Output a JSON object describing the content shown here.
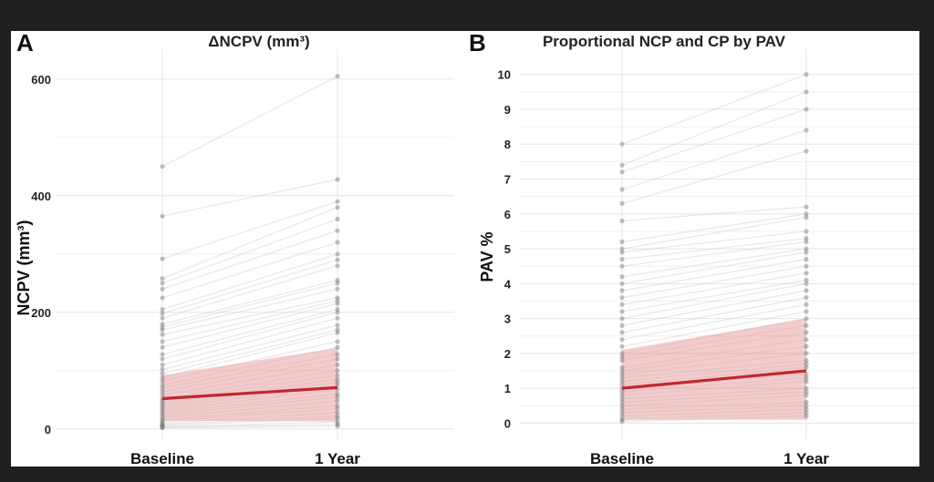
{
  "chart_data": [
    {
      "type": "line",
      "panel_letter": "A",
      "title": "ΔNCPV (mm³)",
      "xlabel": "",
      "ylabel": "NCPV (mm³)",
      "categories": [
        "Baseline",
        "1 Year"
      ],
      "y_ticks": [
        0,
        200,
        400,
        600
      ],
      "ylim": [
        -5,
        620
      ],
      "grid": true,
      "mean_line": {
        "values": [
          52,
          71
        ],
        "color": "#c1272d"
      },
      "confidence_band": {
        "lower": [
          14,
          13
        ],
        "upper": [
          92,
          139
        ],
        "color": "#e46a6a"
      },
      "subjects": [
        [
          450,
          605
        ],
        [
          365,
          428
        ],
        [
          292,
          390
        ],
        [
          258,
          380
        ],
        [
          250,
          360
        ],
        [
          240,
          340
        ],
        [
          225,
          320
        ],
        [
          205,
          300
        ],
        [
          198,
          290
        ],
        [
          190,
          280
        ],
        [
          180,
          255
        ],
        [
          175,
          250
        ],
        [
          170,
          240
        ],
        [
          162,
          225
        ],
        [
          150,
          220
        ],
        [
          140,
          215
        ],
        [
          128,
          205
        ],
        [
          120,
          200
        ],
        [
          110,
          190
        ],
        [
          102,
          178
        ],
        [
          95,
          170
        ],
        [
          88,
          165
        ],
        [
          82,
          150
        ],
        [
          75,
          140
        ],
        [
          70,
          128
        ],
        [
          64,
          120
        ],
        [
          58,
          110
        ],
        [
          52,
          100
        ],
        [
          48,
          92
        ],
        [
          44,
          85
        ],
        [
          40,
          80
        ],
        [
          36,
          75
        ],
        [
          32,
          68
        ],
        [
          28,
          60
        ],
        [
          24,
          55
        ],
        [
          20,
          48
        ],
        [
          16,
          40
        ],
        [
          13,
          35
        ],
        [
          10,
          28
        ],
        [
          8,
          22
        ],
        [
          6,
          18
        ],
        [
          4,
          12
        ],
        [
          3,
          8
        ],
        [
          2,
          5
        ]
      ]
    },
    {
      "type": "line",
      "panel_letter": "B",
      "title": "Proportional NCP and CP by PAV",
      "xlabel": "",
      "ylabel": "PAV %",
      "categories": [
        "Baseline",
        "1 Year"
      ],
      "y_ticks": [
        0,
        1,
        2,
        3,
        4,
        5,
        6,
        7,
        8,
        9,
        10
      ],
      "ylim": [
        -0.25,
        10.2
      ],
      "grid": true,
      "mean_line": {
        "values": [
          1.0,
          1.5
        ],
        "color": "#c1272d"
      },
      "confidence_band": {
        "lower": [
          0.1,
          0.1
        ],
        "upper": [
          2.1,
          3.0
        ],
        "color": "#e46a6a"
      },
      "subjects": [
        [
          8.0,
          10.0
        ],
        [
          7.4,
          9.5
        ],
        [
          7.2,
          9.0
        ],
        [
          6.7,
          8.4
        ],
        [
          6.3,
          7.8
        ],
        [
          5.8,
          6.2
        ],
        [
          5.2,
          6.0
        ],
        [
          5.0,
          5.9
        ],
        [
          4.9,
          5.5
        ],
        [
          4.7,
          5.3
        ],
        [
          4.5,
          5.2
        ],
        [
          4.2,
          5.0
        ],
        [
          4.0,
          4.9
        ],
        [
          3.8,
          4.7
        ],
        [
          3.6,
          4.5
        ],
        [
          3.4,
          4.3
        ],
        [
          3.2,
          4.1
        ],
        [
          3.0,
          4.0
        ],
        [
          2.8,
          3.8
        ],
        [
          2.6,
          3.6
        ],
        [
          2.4,
          3.4
        ],
        [
          2.2,
          3.2
        ],
        [
          2.0,
          3.0
        ],
        [
          1.9,
          2.8
        ],
        [
          1.8,
          2.6
        ],
        [
          1.6,
          2.4
        ],
        [
          1.5,
          2.2
        ],
        [
          1.4,
          2.0
        ],
        [
          1.3,
          1.8
        ],
        [
          1.2,
          1.7
        ],
        [
          1.1,
          1.6
        ],
        [
          1.0,
          1.4
        ],
        [
          0.9,
          1.3
        ],
        [
          0.8,
          1.2
        ],
        [
          0.7,
          1.0
        ],
        [
          0.6,
          0.9
        ],
        [
          0.5,
          0.8
        ],
        [
          0.4,
          0.6
        ],
        [
          0.3,
          0.5
        ],
        [
          0.2,
          0.4
        ],
        [
          0.1,
          0.3
        ],
        [
          0.05,
          0.2
        ]
      ]
    }
  ]
}
